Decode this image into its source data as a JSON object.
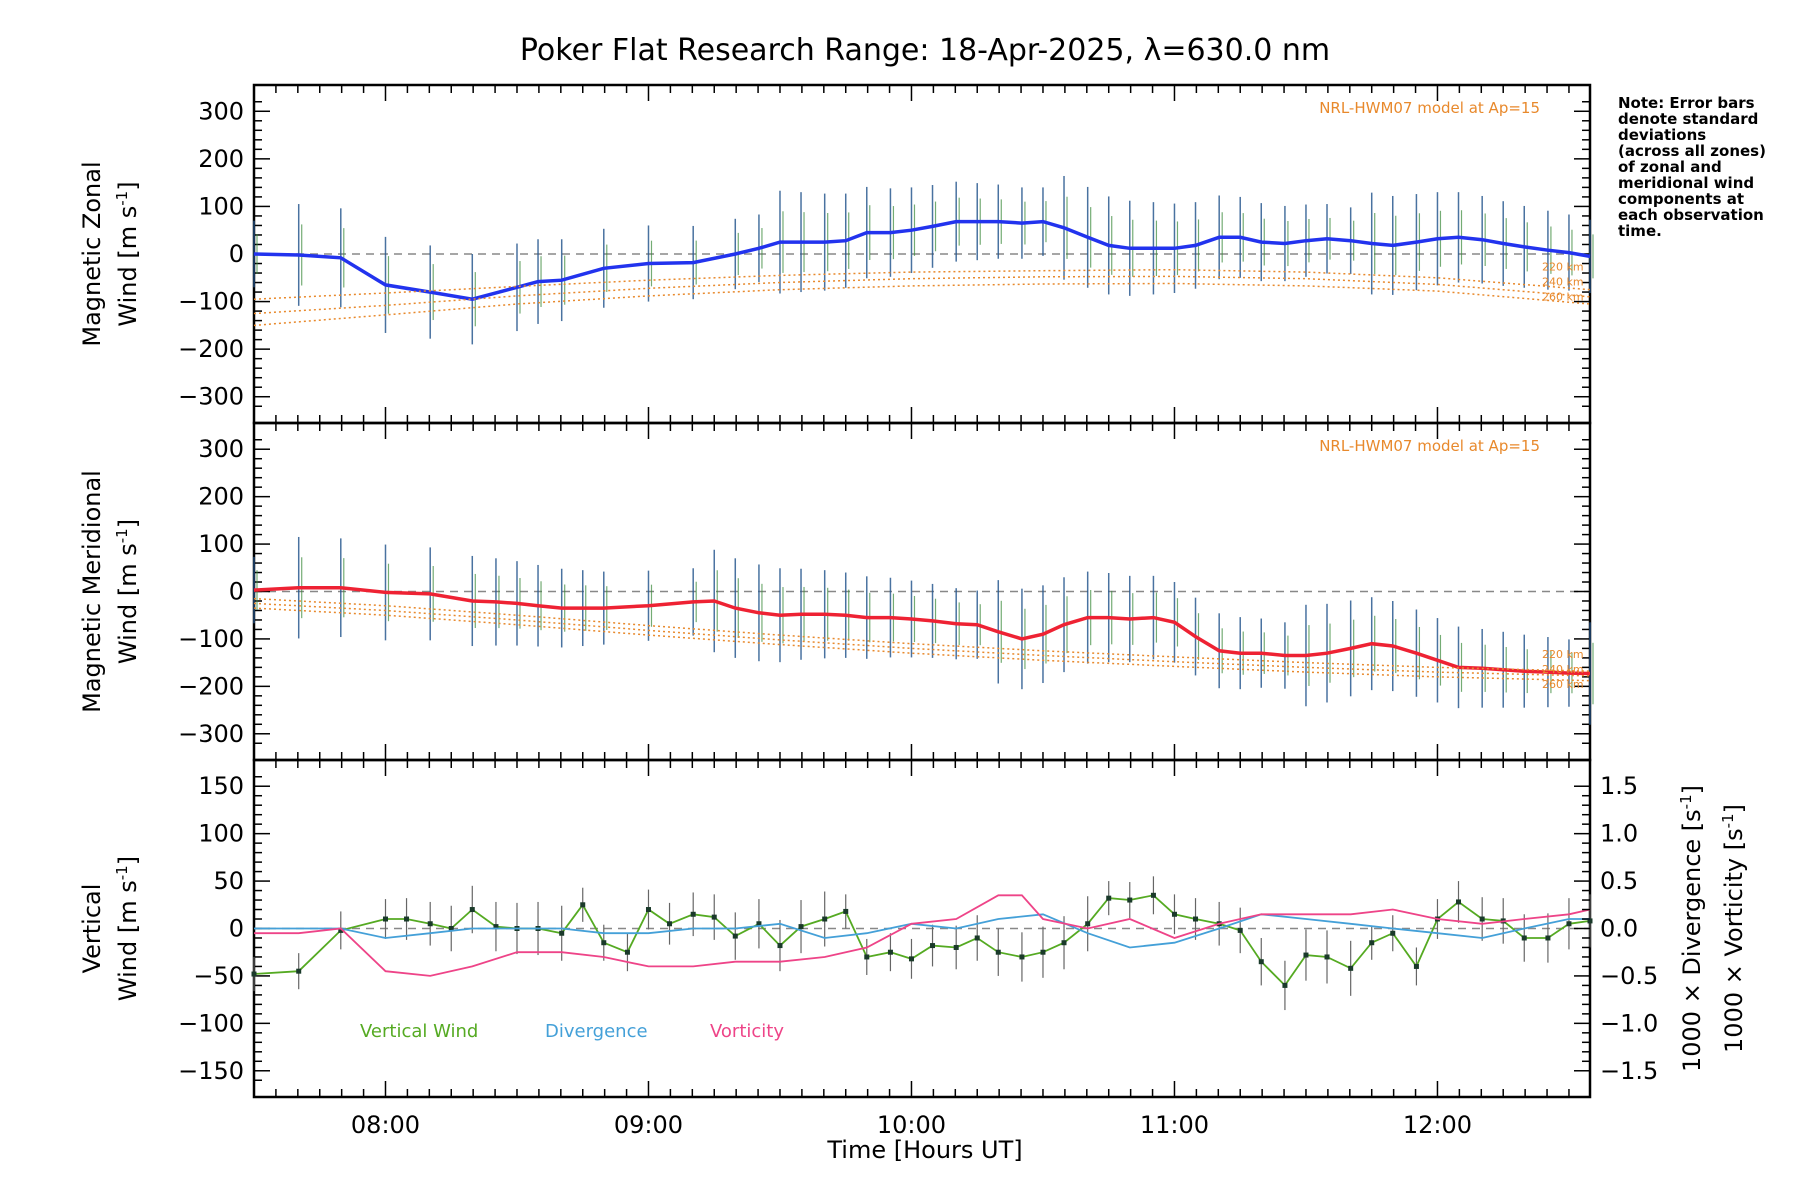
{
  "chart_data": {
    "type": "line",
    "title": "Poker Flat Research Range: 18-Apr-2025, λ=630.0 nm",
    "xlabel": "Time [Hours UT]",
    "xlim": [
      7.5,
      12.58
    ],
    "x_ticks": [
      8,
      9,
      10,
      11,
      12
    ],
    "x_tick_labels": [
      "08:00",
      "09:00",
      "10:00",
      "11:00",
      "12:00"
    ],
    "note": [
      "Note: Error bars",
      "denote standard",
      "deviations",
      "(across all zones)",
      "of zonal and",
      "meridional wind",
      "components at",
      "each observation",
      "time."
    ],
    "panels": [
      {
        "id": "zonal",
        "ylabel_line1": "Magnetic Zonal",
        "ylabel_line2": "Wind [m s",
        "ylabel_sup": "-1",
        "ylabel_close": "]",
        "ylim": [
          -330,
          330
        ],
        "y_ticks": [
          300,
          200,
          100,
          0,
          -100,
          -200,
          -300
        ],
        "model_label": "NRL-HWM07 model at Ap=15",
        "altitudes": [
          "220 km",
          "240 km",
          "260 km"
        ],
        "series": [
          {
            "name": "Zonal wind",
            "color": "#2233ee",
            "x": [
              7.5,
              7.67,
              7.83,
              8.0,
              8.17,
              8.33,
              8.5,
              8.58,
              8.67,
              8.83,
              9.0,
              9.17,
              9.33,
              9.42,
              9.5,
              9.58,
              9.67,
              9.75,
              9.83,
              9.92,
              10.0,
              10.08,
              10.17,
              10.25,
              10.33,
              10.42,
              10.5,
              10.58,
              10.67,
              10.75,
              10.83,
              10.92,
              11.0,
              11.08,
              11.17,
              11.25,
              11.33,
              11.42,
              11.5,
              11.58,
              11.67,
              11.75,
              11.83,
              11.92,
              12.0,
              12.08,
              12.17,
              12.25,
              12.33,
              12.42,
              12.5,
              12.58
            ],
            "y": [
              0,
              -2,
              -8,
              -65,
              -80,
              -95,
              -70,
              -58,
              -55,
              -30,
              -20,
              -18,
              0,
              12,
              25,
              25,
              25,
              28,
              45,
              45,
              50,
              58,
              68,
              68,
              68,
              65,
              68,
              55,
              35,
              18,
              12,
              12,
              12,
              18,
              35,
              35,
              25,
              22,
              28,
              32,
              28,
              22,
              18,
              25,
              32,
              35,
              30,
              22,
              15,
              8,
              3,
              -5
            ]
          },
          {
            "name": "HWM07 220 km",
            "color": "#e8892c",
            "x": [
              7.5,
              8.0,
              8.5,
              9.0,
              9.5,
              10.0,
              10.5,
              11.0,
              11.5,
              12.0,
              12.58
            ],
            "y": [
              -95,
              -82,
              -68,
              -55,
              -45,
              -38,
              -35,
              -33,
              -38,
              -50,
              -75
            ]
          },
          {
            "name": "HWM07 240 km",
            "color": "#e8892c",
            "x": [
              7.5,
              8.0,
              8.5,
              9.0,
              9.5,
              10.0,
              10.5,
              11.0,
              11.5,
              12.0,
              12.58
            ],
            "y": [
              -125,
              -108,
              -88,
              -72,
              -60,
              -52,
              -48,
              -47,
              -52,
              -64,
              -90
            ]
          },
          {
            "name": "HWM07 260 km",
            "color": "#e8892c",
            "x": [
              7.5,
              8.0,
              8.5,
              9.0,
              9.5,
              10.0,
              10.5,
              11.0,
              11.5,
              12.0,
              12.58
            ],
            "y": [
              -150,
              -128,
              -105,
              -88,
              -75,
              -67,
              -63,
              -62,
              -67,
              -78,
              -105
            ]
          }
        ]
      },
      {
        "id": "meridional",
        "ylabel_line1": "Magnetic Meridional",
        "ylabel_line2": "Wind [m s",
        "ylabel_sup": "-1",
        "ylabel_close": "]",
        "ylim": [
          -330,
          330
        ],
        "y_ticks": [
          300,
          200,
          100,
          0,
          -100,
          -200,
          -300
        ],
        "model_label": "NRL-HWM07 model at Ap=15",
        "altitudes": [
          "220 km",
          "240 km",
          "260 km"
        ],
        "series": [
          {
            "name": "Meridional wind",
            "color": "#ee2233",
            "x": [
              7.5,
              7.67,
              7.83,
              8.0,
              8.17,
              8.33,
              8.42,
              8.5,
              8.58,
              8.67,
              8.75,
              8.83,
              9.0,
              9.17,
              9.25,
              9.33,
              9.42,
              9.5,
              9.58,
              9.67,
              9.75,
              9.83,
              9.92,
              10.0,
              10.08,
              10.17,
              10.25,
              10.33,
              10.42,
              10.5,
              10.58,
              10.67,
              10.75,
              10.83,
              10.92,
              11.0,
              11.08,
              11.17,
              11.25,
              11.33,
              11.42,
              11.5,
              11.58,
              11.67,
              11.75,
              11.83,
              11.92,
              12.0,
              12.08,
              12.17,
              12.25,
              12.33,
              12.42,
              12.5,
              12.58
            ],
            "y": [
              3,
              8,
              8,
              -2,
              -5,
              -20,
              -22,
              -25,
              -30,
              -35,
              -35,
              -35,
              -30,
              -22,
              -20,
              -35,
              -45,
              -50,
              -48,
              -48,
              -50,
              -55,
              -55,
              -58,
              -62,
              -68,
              -70,
              -85,
              -100,
              -90,
              -70,
              -55,
              -55,
              -58,
              -55,
              -65,
              -95,
              -125,
              -130,
              -130,
              -135,
              -135,
              -130,
              -120,
              -110,
              -115,
              -130,
              -145,
              -160,
              -162,
              -165,
              -168,
              -170,
              -172,
              -173
            ]
          },
          {
            "name": "HWM07 220 km",
            "color": "#e8892c",
            "x": [
              7.5,
              8.0,
              8.5,
              9.0,
              9.5,
              10.0,
              10.5,
              11.0,
              11.5,
              12.0,
              12.58
            ],
            "y": [
              -15,
              -30,
              -50,
              -72,
              -92,
              -110,
              -125,
              -138,
              -150,
              -160,
              -168
            ]
          },
          {
            "name": "HWM07 240 km",
            "color": "#e8892c",
            "x": [
              7.5,
              8.0,
              8.5,
              9.0,
              9.5,
              10.0,
              10.5,
              11.0,
              11.5,
              12.0,
              12.58
            ],
            "y": [
              -25,
              -40,
              -60,
              -82,
              -102,
              -120,
              -135,
              -148,
              -160,
              -170,
              -178
            ]
          },
          {
            "name": "HWM07 260 km",
            "color": "#e8892c",
            "x": [
              7.5,
              8.0,
              8.5,
              9.0,
              9.5,
              10.0,
              10.5,
              11.0,
              11.5,
              12.0,
              12.58
            ],
            "y": [
              -35,
              -50,
              -70,
              -92,
              -112,
              -130,
              -145,
              -158,
              -170,
              -180,
              -188
            ]
          }
        ]
      },
      {
        "id": "vertical",
        "ylabel_line1": "Vertical",
        "ylabel_line2": "Wind [m s",
        "ylabel_sup": "-1",
        "ylabel_close": "]",
        "ylim": [
          -165,
          165
        ],
        "y_ticks": [
          150,
          100,
          50,
          0,
          -50,
          -100,
          -150
        ],
        "y2lim": [
          -1.65,
          1.65
        ],
        "y2_ticks": [
          1.5,
          1.0,
          0.5,
          0.0,
          -0.5,
          -1.0,
          -1.5
        ],
        "y2_tick_labels": [
          "1.5",
          "1.0",
          "0.5",
          "0.0",
          "−0.5",
          "−1.0",
          "−1.5"
        ],
        "y2_label_div": "1000 × Divergence [s",
        "y2_label_vor": "1000 × Vorticity [s",
        "y2_label_sup": "-1",
        "y2_label_close": "]",
        "legend": [
          {
            "label": "Vertical Wind",
            "color": "#55aa22"
          },
          {
            "label": "Divergence",
            "color": "#44a0d8"
          },
          {
            "label": "Vorticity",
            "color": "#ee4488"
          }
        ],
        "series": [
          {
            "name": "Vertical Wind",
            "color": "#55aa22",
            "axis": "left",
            "x": [
              7.5,
              7.67,
              7.83,
              8.0,
              8.08,
              8.17,
              8.25,
              8.33,
              8.42,
              8.5,
              8.58,
              8.67,
              8.75,
              8.83,
              8.92,
              9.0,
              9.08,
              9.17,
              9.25,
              9.33,
              9.42,
              9.5,
              9.58,
              9.67,
              9.75,
              9.83,
              9.92,
              10.0,
              10.08,
              10.17,
              10.25,
              10.33,
              10.42,
              10.5,
              10.58,
              10.67,
              10.75,
              10.83,
              10.92,
              11.0,
              11.08,
              11.17,
              11.25,
              11.33,
              11.42,
              11.5,
              11.58,
              11.67,
              11.75,
              11.83,
              11.92,
              12.0,
              12.08,
              12.17,
              12.25,
              12.33,
              12.42,
              12.5,
              12.58
            ],
            "y": [
              -48,
              -45,
              -2,
              10,
              10,
              5,
              0,
              20,
              2,
              0,
              0,
              -5,
              25,
              -15,
              -25,
              20,
              5,
              15,
              12,
              -8,
              5,
              -18,
              2,
              10,
              18,
              -30,
              -25,
              -32,
              -18,
              -20,
              -10,
              -25,
              -30,
              -25,
              -15,
              5,
              32,
              30,
              35,
              15,
              10,
              5,
              -2,
              -35,
              -60,
              -28,
              -30,
              -42,
              -15,
              -5,
              -40,
              10,
              28,
              10,
              8,
              -10,
              -10,
              5,
              8
            ]
          },
          {
            "name": "Divergence",
            "color": "#44a0d8",
            "axis": "right",
            "x": [
              7.5,
              7.67,
              7.83,
              8.0,
              8.17,
              8.33,
              8.5,
              8.67,
              8.83,
              9.0,
              9.17,
              9.33,
              9.5,
              9.67,
              9.83,
              10.0,
              10.17,
              10.33,
              10.5,
              10.67,
              10.83,
              11.0,
              11.17,
              11.33,
              11.5,
              11.67,
              11.83,
              12.0,
              12.17,
              12.33,
              12.5,
              12.58
            ],
            "y": [
              0.0,
              0.0,
              0.0,
              -0.1,
              -0.05,
              0.0,
              0.0,
              0.0,
              -0.05,
              -0.05,
              0.0,
              0.0,
              0.05,
              -0.1,
              -0.05,
              0.05,
              0.0,
              0.1,
              0.15,
              -0.05,
              -0.2,
              -0.15,
              0.0,
              0.15,
              0.1,
              0.05,
              0.0,
              -0.05,
              -0.1,
              0.0,
              0.1,
              0.1
            ]
          },
          {
            "name": "Vorticity",
            "color": "#ee4488",
            "axis": "right",
            "x": [
              7.5,
              7.67,
              7.83,
              8.0,
              8.17,
              8.33,
              8.5,
              8.67,
              8.83,
              9.0,
              9.17,
              9.33,
              9.5,
              9.67,
              9.83,
              10.0,
              10.17,
              10.33,
              10.42,
              10.5,
              10.67,
              10.83,
              11.0,
              11.17,
              11.33,
              11.5,
              11.67,
              11.83,
              12.0,
              12.17,
              12.33,
              12.5,
              12.58
            ],
            "y": [
              -0.05,
              -0.05,
              0.0,
              -0.45,
              -0.5,
              -0.4,
              -0.25,
              -0.25,
              -0.3,
              -0.4,
              -0.4,
              -0.35,
              -0.35,
              -0.3,
              -0.2,
              0.05,
              0.1,
              0.35,
              0.35,
              0.1,
              0.0,
              0.1,
              -0.1,
              0.05,
              0.15,
              0.15,
              0.15,
              0.2,
              0.1,
              0.05,
              0.1,
              0.15,
              0.2
            ]
          }
        ]
      }
    ]
  }
}
